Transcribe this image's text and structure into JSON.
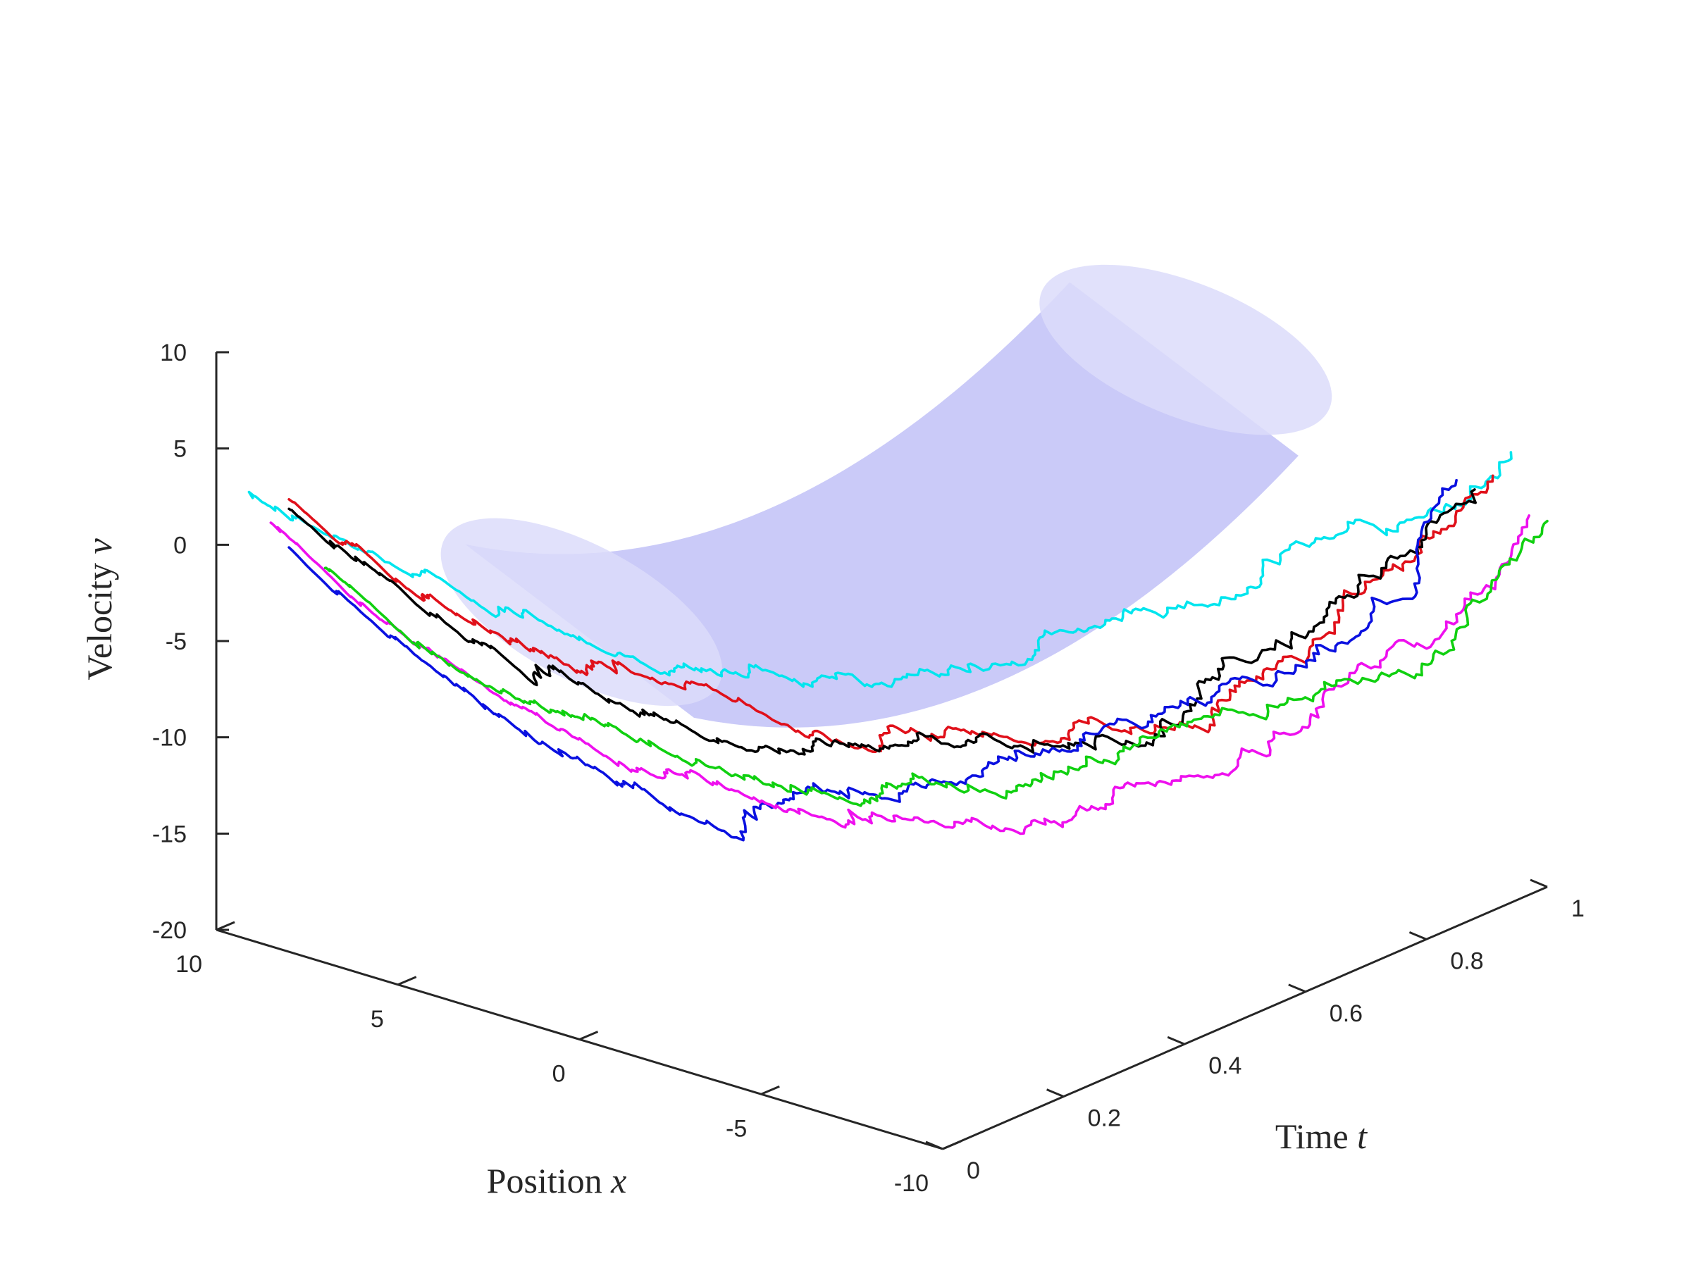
{
  "chart_data": {
    "type": "line",
    "title": "",
    "xlabel": "Position",
    "xlabel_var": "x",
    "ylabel": "Time",
    "ylabel_var": "t",
    "zlabel": "Velocity",
    "zlabel_var": "v",
    "x_ticks": [
      "10",
      "5",
      "0",
      "-5",
      "-10"
    ],
    "y_ticks": [
      "0",
      "0.2",
      "0.4",
      "0.6",
      "0.8",
      "1"
    ],
    "z_ticks": [
      "10",
      "5",
      "0",
      "-5",
      "-10",
      "-15",
      "-20"
    ],
    "xlim": [
      -10,
      10
    ],
    "ylim": [
      0,
      1
    ],
    "zlim": [
      -20,
      10
    ],
    "grid": false,
    "legend": false,
    "tube": {
      "color": "#b4b4f5",
      "description_of_center": "velocity mean ≈ 20t^2 − 20t + 2, position mean ≈ 0",
      "radius_velocity": 3.5,
      "radius_position": 3.5
    },
    "series": [
      {
        "color": "#00e5ee",
        "x_start": 9.0,
        "v_start": 3.0,
        "v_mid": -8.5,
        "v_end": 2.0,
        "x_end": -9.0
      },
      {
        "color": "#e0101a",
        "x_start": 8.0,
        "v_start": 3.5,
        "v_mid": -11.0,
        "v_end": 0.5,
        "x_end": -8.5
      },
      {
        "color": "#000000",
        "x_start": 8.0,
        "v_start": 3.0,
        "v_mid": -12.0,
        "v_end": -0.5,
        "x_end": -8.0
      },
      {
        "color": "#0a10e0",
        "x_start": 8.0,
        "v_start": 1.0,
        "v_mid": -13.5,
        "v_end": -0.3,
        "x_end": -7.5
      },
      {
        "color": "#ee10ee",
        "x_start": 8.5,
        "v_start": 2.0,
        "v_mid": -15.5,
        "v_end": -1.0,
        "x_end": -9.5
      },
      {
        "color": "#10d010",
        "x_start": 7.0,
        "v_start": 0.5,
        "v_mid": -14.0,
        "v_end": -1.0,
        "x_end": -10.0
      }
    ]
  }
}
